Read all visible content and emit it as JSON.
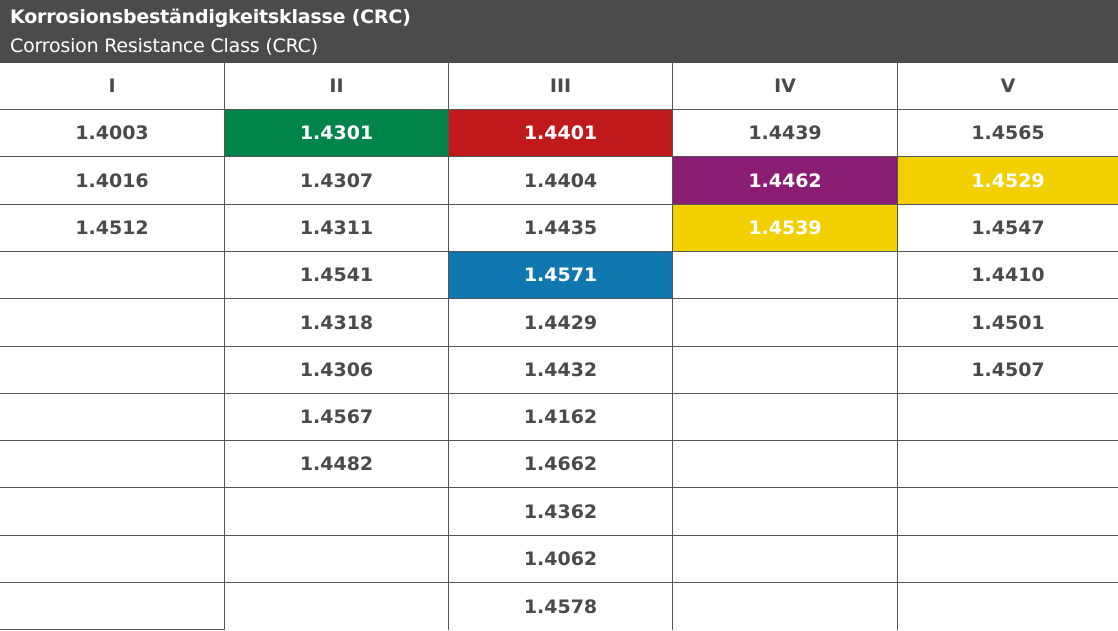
{
  "title": {
    "german": "Korrosionsbeständigkeitsklasse (CRC)",
    "english": "Corrosion Resistance Class (CRC)"
  },
  "columns": [
    "I",
    "II",
    "III",
    "IV",
    "V"
  ],
  "rows": [
    [
      "1.4003",
      "1.4301",
      "1.4401",
      "1.4439",
      "1.4565"
    ],
    [
      "1.4016",
      "1.4307",
      "1.4404",
      "1.4462",
      "1.4529"
    ],
    [
      "1.4512",
      "1.4311",
      "1.4435",
      "1.4539",
      "1.4547"
    ],
    [
      "",
      "1.4541",
      "1.4571",
      "",
      "1.4410"
    ],
    [
      "",
      "1.4318",
      "1.4429",
      "",
      "1.4501"
    ],
    [
      "",
      "1.4306",
      "1.4432",
      "",
      "1.4507"
    ],
    [
      "",
      "1.4567",
      "1.4162",
      "",
      ""
    ],
    [
      "",
      "1.4482",
      "1.4662",
      "",
      ""
    ],
    [
      "",
      "",
      "1.4362",
      "",
      ""
    ],
    [
      "",
      "",
      "1.4062",
      "",
      ""
    ],
    [
      "",
      "",
      "1.4578",
      "",
      ""
    ]
  ],
  "highlights": [
    {
      "row": 0,
      "col": 1,
      "color": "#00844a"
    },
    {
      "row": 0,
      "col": 2,
      "color": "#c0191c"
    },
    {
      "row": 1,
      "col": 3,
      "color": "#8a1c74"
    },
    {
      "row": 1,
      "col": 4,
      "color": "#f2d000"
    },
    {
      "row": 2,
      "col": 3,
      "color": "#f2d000"
    },
    {
      "row": 3,
      "col": 2,
      "color": "#1177b0"
    }
  ]
}
